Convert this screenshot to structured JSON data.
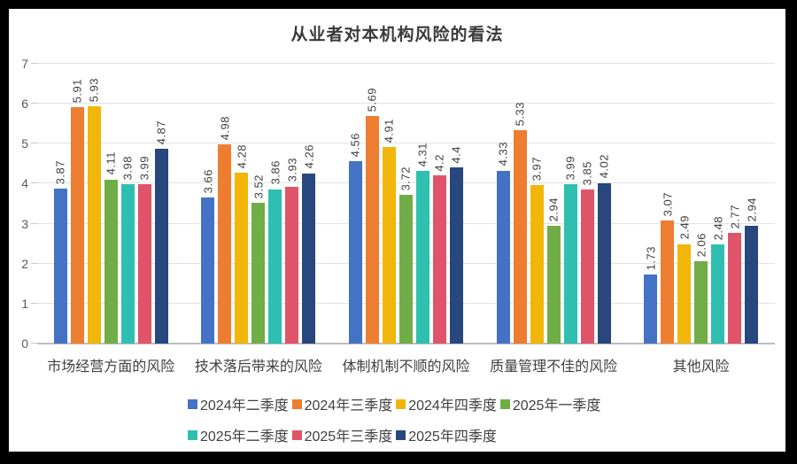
{
  "chart_data": {
    "type": "bar",
    "title": "从业者对本机构风险的看法",
    "categories": [
      "市场经营方面的风险",
      "技术落后带来的风险",
      "体制机制不顺的风险",
      "质量管理不佳的风险",
      "其他风险"
    ],
    "series": [
      {
        "name": "2024年二季度",
        "color": "#4472C4",
        "values": [
          3.87,
          3.66,
          4.56,
          4.33,
          1.73
        ]
      },
      {
        "name": "2024年三季度",
        "color": "#ED7D31",
        "values": [
          5.91,
          4.98,
          5.69,
          5.33,
          3.07
        ]
      },
      {
        "name": "2024年四季度",
        "color": "#F2B60A",
        "values": [
          5.93,
          4.28,
          4.91,
          3.97,
          2.49
        ]
      },
      {
        "name": "2025年一季度",
        "color": "#70AD47",
        "values": [
          4.11,
          3.52,
          3.72,
          2.94,
          2.06
        ]
      },
      {
        "name": "2025年二季度",
        "color": "#2FBFB0",
        "values": [
          3.98,
          3.86,
          4.31,
          3.99,
          2.48
        ]
      },
      {
        "name": "2025年三季度",
        "color": "#E0546A",
        "values": [
          3.99,
          3.93,
          4.2,
          3.85,
          2.77
        ]
      },
      {
        "name": "2025年四季度",
        "color": "#27477E",
        "values": [
          4.87,
          4.26,
          4.4,
          4.02,
          2.94
        ]
      }
    ],
    "ylim": [
      0,
      7
    ],
    "yticks": [
      0,
      1,
      2,
      3,
      4,
      5,
      6,
      7
    ],
    "grid": true,
    "data_labels": "rotated 90° counterclockwise above bars",
    "legend_position": "bottom",
    "legend_rows": [
      [
        0,
        1,
        2,
        3
      ],
      [
        4,
        5,
        6
      ]
    ]
  }
}
